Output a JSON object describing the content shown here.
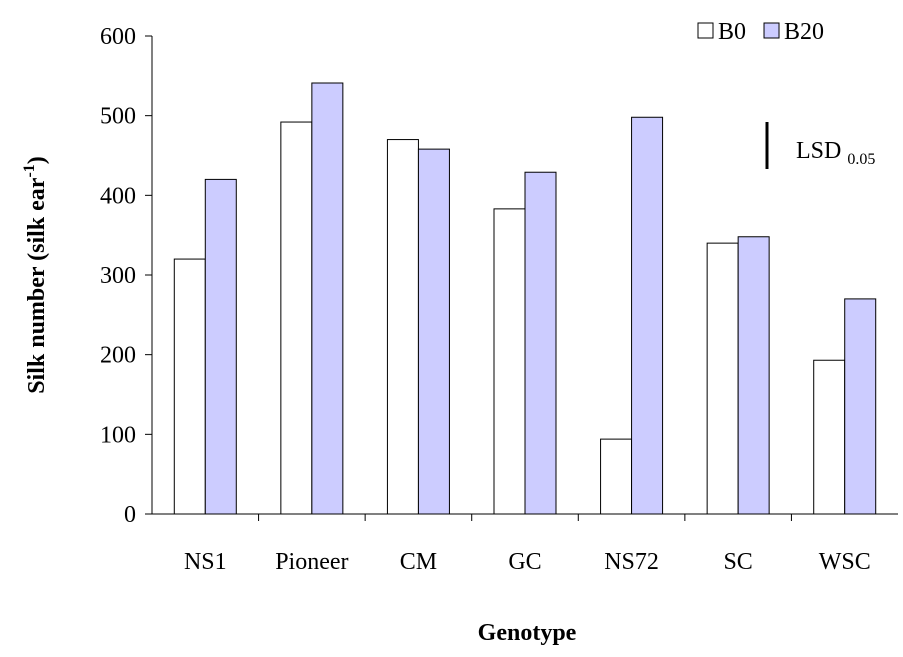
{
  "chart_data": {
    "type": "bar",
    "xlabel": "Genotype",
    "ylabel": {
      "text": "Silk number (silk ear",
      "sup": "-1",
      "close": ")"
    },
    "categories": [
      "NS1",
      "Pioneer",
      "CM",
      "GC",
      "NS72",
      "SC",
      "WSC"
    ],
    "series": [
      {
        "name": "B0",
        "color": "#ffffff",
        "values": [
          320,
          492,
          470,
          383,
          94,
          340,
          193
        ]
      },
      {
        "name": "B20",
        "color": "#ccccff",
        "values": [
          420,
          541,
          458,
          429,
          498,
          348,
          270
        ]
      }
    ],
    "ylim": [
      0,
      600
    ],
    "yticks": [
      0,
      100,
      200,
      300,
      400,
      500,
      600
    ],
    "legend": "top-right",
    "lsd": {
      "label": "LSD",
      "subscript": "0.05",
      "value": 59
    }
  }
}
